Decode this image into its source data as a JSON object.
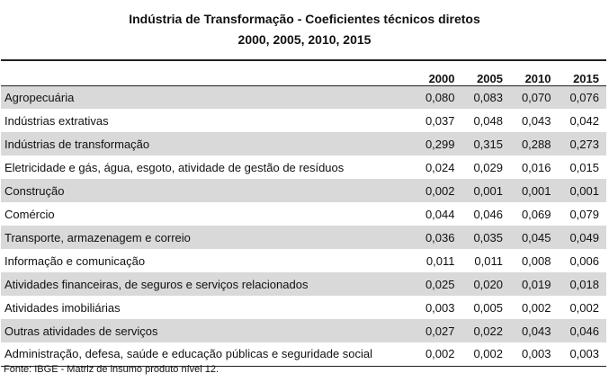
{
  "title": {
    "line1": "Indústria de Transformação - Coeficientes técnicos diretos",
    "line2": "2000, 2005, 2010, 2015"
  },
  "table": {
    "columns": [
      "2000",
      "2005",
      "2010",
      "2015"
    ],
    "rows": [
      {
        "label": "Agropecuária",
        "values": [
          "0,080",
          "0,083",
          "0,070",
          "0,076"
        ],
        "shaded": true
      },
      {
        "label": "Indústrias extrativas",
        "values": [
          "0,037",
          "0,048",
          "0,043",
          "0,042"
        ],
        "shaded": false
      },
      {
        "label": "Indústrias de transformação",
        "values": [
          "0,299",
          "0,315",
          "0,288",
          "0,273"
        ],
        "shaded": true
      },
      {
        "label": "Eletricidade e gás, água, esgoto, atividade de gestão de resíduos",
        "values": [
          "0,024",
          "0,029",
          "0,016",
          "0,015"
        ],
        "shaded": false
      },
      {
        "label": "Construção",
        "values": [
          "0,002",
          "0,001",
          "0,001",
          "0,001"
        ],
        "shaded": true
      },
      {
        "label": "Comércio",
        "values": [
          "0,044",
          "0,046",
          "0,069",
          "0,079"
        ],
        "shaded": false
      },
      {
        "label": "Transporte, armazenagem e correio",
        "values": [
          "0,036",
          "0,035",
          "0,045",
          "0,049"
        ],
        "shaded": true
      },
      {
        "label": "Informação e comunicação",
        "values": [
          "0,011",
          "0,011",
          "0,008",
          "0,006"
        ],
        "shaded": false
      },
      {
        "label": "Atividades financeiras, de seguros e serviços relacionados",
        "values": [
          "0,025",
          "0,020",
          "0,019",
          "0,018"
        ],
        "shaded": true
      },
      {
        "label": "Atividades imobiliárias",
        "values": [
          "0,003",
          "0,005",
          "0,002",
          "0,002"
        ],
        "shaded": false
      },
      {
        "label": "Outras atividades de serviços",
        "values": [
          "0,027",
          "0,022",
          "0,043",
          "0,046"
        ],
        "shaded": true
      },
      {
        "label": "Administração, defesa, saúde e educação públicas e seguridade social",
        "values": [
          "0,002",
          "0,002",
          "0,003",
          "0,003"
        ],
        "shaded": false
      }
    ]
  },
  "source": "Fonte: IBGE - Matriz de insumo produto nível 12.",
  "colors": {
    "shaded_row": "#d9d9d9",
    "rule": "#222222"
  }
}
